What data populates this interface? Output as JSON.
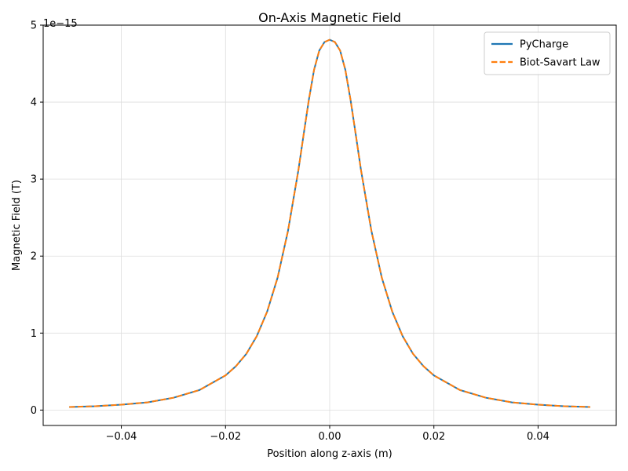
{
  "chart_data": {
    "type": "line",
    "title": "On-Axis Magnetic Field",
    "xlabel": "Position along z-axis (m)",
    "ylabel": "Magnetic Field (T)",
    "y_offset_text": "1e−15",
    "y_scale_factor": 1e-15,
    "xlim": [
      -0.055,
      0.055
    ],
    "ylim": [
      -0.2,
      5.0
    ],
    "x_ticks": [
      -0.04,
      -0.02,
      0.0,
      0.02,
      0.04
    ],
    "x_tick_labels": [
      "−0.04",
      "−0.02",
      "0.00",
      "0.02",
      "0.04"
    ],
    "y_ticks": [
      0,
      1,
      2,
      3,
      4,
      5
    ],
    "y_tick_labels": [
      "0",
      "1",
      "2",
      "3",
      "4",
      "5"
    ],
    "grid": true,
    "legend_position": "top-right",
    "series": [
      {
        "name": "PyCharge",
        "color": "#1f77b4",
        "style": "solid",
        "x": [
          -0.05,
          -0.045,
          -0.04,
          -0.035,
          -0.03,
          -0.025,
          -0.02,
          -0.018,
          -0.016,
          -0.014,
          -0.012,
          -0.01,
          -0.008,
          -0.006,
          -0.005,
          -0.004,
          -0.003,
          -0.002,
          -0.001,
          0.0,
          0.001,
          0.002,
          0.003,
          0.004,
          0.005,
          0.006,
          0.008,
          0.01,
          0.012,
          0.014,
          0.016,
          0.018,
          0.02,
          0.025,
          0.03,
          0.035,
          0.04,
          0.045,
          0.05
        ],
        "y": [
          0.04,
          0.05,
          0.07,
          0.1,
          0.16,
          0.26,
          0.45,
          0.57,
          0.73,
          0.96,
          1.28,
          1.72,
          2.33,
          3.12,
          3.58,
          4.03,
          4.42,
          4.67,
          4.78,
          4.81,
          4.78,
          4.67,
          4.42,
          4.03,
          3.58,
          3.12,
          2.33,
          1.72,
          1.28,
          0.96,
          0.73,
          0.57,
          0.45,
          0.26,
          0.16,
          0.1,
          0.07,
          0.05,
          0.04
        ]
      },
      {
        "name": "Biot-Savart Law",
        "color": "#ff7f0e",
        "style": "dashed",
        "x": [
          -0.05,
          -0.045,
          -0.04,
          -0.035,
          -0.03,
          -0.025,
          -0.02,
          -0.018,
          -0.016,
          -0.014,
          -0.012,
          -0.01,
          -0.008,
          -0.006,
          -0.005,
          -0.004,
          -0.003,
          -0.002,
          -0.001,
          0.0,
          0.001,
          0.002,
          0.003,
          0.004,
          0.005,
          0.006,
          0.008,
          0.01,
          0.012,
          0.014,
          0.016,
          0.018,
          0.02,
          0.025,
          0.03,
          0.035,
          0.04,
          0.045,
          0.05
        ],
        "y": [
          0.04,
          0.05,
          0.07,
          0.1,
          0.16,
          0.26,
          0.45,
          0.57,
          0.73,
          0.96,
          1.28,
          1.72,
          2.33,
          3.12,
          3.58,
          4.03,
          4.42,
          4.67,
          4.78,
          4.81,
          4.78,
          4.67,
          4.42,
          4.03,
          3.58,
          3.12,
          2.33,
          1.72,
          1.28,
          0.96,
          0.73,
          0.57,
          0.45,
          0.26,
          0.16,
          0.1,
          0.07,
          0.05,
          0.04
        ]
      }
    ]
  }
}
